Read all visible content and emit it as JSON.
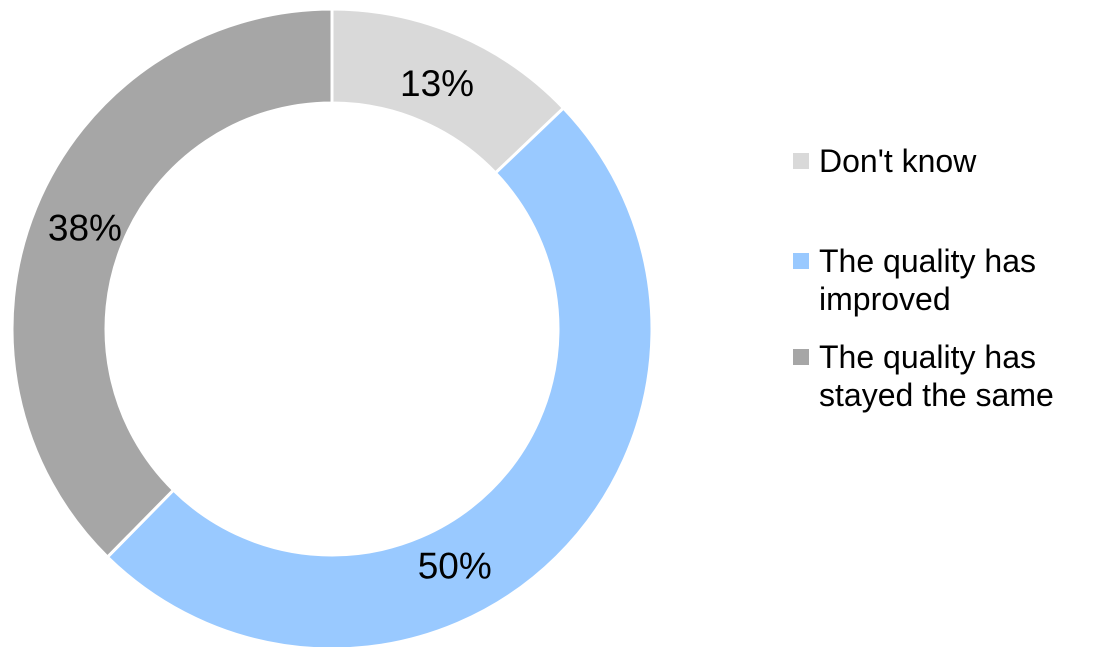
{
  "chart_data": {
    "type": "pie",
    "variant": "donut",
    "title": "",
    "categories": [
      "Don't know",
      "The quality has improved",
      "The quality has stayed the same"
    ],
    "values": [
      13,
      50,
      38
    ],
    "labels": [
      "13%",
      "50%",
      "38%"
    ],
    "colors": [
      "#d9d9d9",
      "#99c9ff",
      "#a6a6a6"
    ],
    "legend": {
      "position": "right",
      "entries": [
        {
          "text": "Don't know",
          "color": "#d9d9d9"
        },
        {
          "text": "The quality has improved",
          "color": "#99c9ff"
        },
        {
          "text": "The quality has stayed the same",
          "color": "#a6a6a6"
        }
      ]
    }
  }
}
